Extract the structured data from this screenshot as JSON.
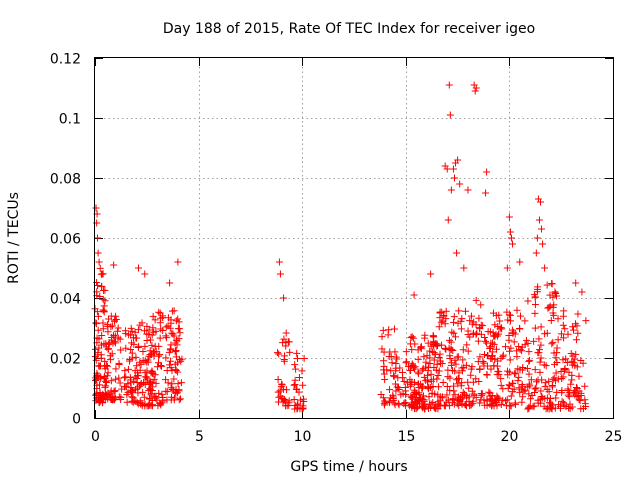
{
  "chart_data": {
    "type": "scatter",
    "title": "Day 188 of 2015, Rate Of TEC Index for receiver igeo",
    "xlabel": "GPS time / hours",
    "ylabel": "ROTI / TECUs",
    "xlim": [
      0,
      25
    ],
    "ylim": [
      0,
      0.12
    ],
    "x_ticks": [
      0,
      5,
      10,
      15,
      20,
      25
    ],
    "x_tick_labels": [
      "0",
      "5",
      "10",
      "15",
      "20",
      "25"
    ],
    "y_ticks": [
      0,
      0.02,
      0.04,
      0.06,
      0.08,
      0.1,
      0.12
    ],
    "y_tick_labels": [
      "0",
      "0.02",
      "0.04",
      "0.06",
      "0.08",
      "0.1",
      "0.12"
    ],
    "grid": true,
    "marker": "+",
    "color": "#ff0000",
    "series": [
      {
        "name": "ROTI",
        "clusters": [
          {
            "x": [
              0.0,
              0.5
            ],
            "y": [
              0.005,
              0.05
            ],
            "n": 90
          },
          {
            "x": [
              0.5,
              1.3
            ],
            "y": [
              0.006,
              0.034
            ],
            "n": 70
          },
          {
            "x": [
              1.4,
              2.1
            ],
            "y": [
              0.005,
              0.03
            ],
            "n": 60
          },
          {
            "x": [
              2.1,
              2.8
            ],
            "y": [
              0.004,
              0.032
            ],
            "n": 60
          },
          {
            "x": [
              2.6,
              3.3
            ],
            "y": [
              0.004,
              0.036
            ],
            "n": 60
          },
          {
            "x": [
              3.4,
              4.2
            ],
            "y": [
              0.006,
              0.04
            ],
            "n": 70
          },
          {
            "x": [
              8.8,
              9.4
            ],
            "y": [
              0.004,
              0.03
            ],
            "n": 35
          },
          {
            "x": [
              9.6,
              10.1
            ],
            "y": [
              0.003,
              0.025
            ],
            "n": 30
          },
          {
            "x": [
              13.8,
              15.2
            ],
            "y": [
              0.004,
              0.03
            ],
            "n": 70
          },
          {
            "x": [
              15.2,
              16.6
            ],
            "y": [
              0.003,
              0.028
            ],
            "n": 150
          },
          {
            "x": [
              16.6,
              18.0
            ],
            "y": [
              0.004,
              0.036
            ],
            "n": 110
          },
          {
            "x": [
              18.0,
              19.4
            ],
            "y": [
              0.004,
              0.04
            ],
            "n": 110
          },
          {
            "x": [
              19.4,
              20.8
            ],
            "y": [
              0.004,
              0.036
            ],
            "n": 90
          },
          {
            "x": [
              20.8,
              22.3
            ],
            "y": [
              0.003,
              0.045
            ],
            "n": 110
          },
          {
            "x": [
              22.3,
              23.7
            ],
            "y": [
              0.003,
              0.036
            ],
            "n": 80
          }
        ],
        "outliers": [
          [
            0.05,
            0.07
          ],
          [
            0.1,
            0.068
          ],
          [
            0.08,
            0.065
          ],
          [
            0.12,
            0.06
          ],
          [
            0.2,
            0.052
          ],
          [
            0.15,
            0.055
          ],
          [
            0.9,
            0.051
          ],
          [
            2.1,
            0.05
          ],
          [
            2.4,
            0.048
          ],
          [
            3.6,
            0.045
          ],
          [
            4.0,
            0.052
          ],
          [
            8.9,
            0.052
          ],
          [
            8.95,
            0.048
          ],
          [
            9.1,
            0.04
          ],
          [
            17.1,
            0.111
          ],
          [
            17.15,
            0.101
          ],
          [
            17.0,
            0.083
          ],
          [
            16.9,
            0.084
          ],
          [
            17.5,
            0.086
          ],
          [
            17.4,
            0.085
          ],
          [
            17.3,
            0.083
          ],
          [
            17.35,
            0.08
          ],
          [
            17.05,
            0.066
          ],
          [
            17.45,
            0.055
          ],
          [
            17.2,
            0.076
          ],
          [
            17.6,
            0.078
          ],
          [
            18.3,
            0.111
          ],
          [
            18.35,
            0.109
          ],
          [
            18.4,
            0.11
          ],
          [
            18.0,
            0.076
          ],
          [
            18.9,
            0.082
          ],
          [
            18.85,
            0.075
          ],
          [
            20.0,
            0.067
          ],
          [
            20.05,
            0.062
          ],
          [
            20.1,
            0.06
          ],
          [
            20.15,
            0.058
          ],
          [
            21.4,
            0.073
          ],
          [
            21.5,
            0.072
          ],
          [
            21.45,
            0.066
          ],
          [
            21.55,
            0.063
          ],
          [
            21.35,
            0.06
          ],
          [
            21.6,
            0.058
          ],
          [
            21.3,
            0.055
          ],
          [
            21.7,
            0.05
          ],
          [
            20.5,
            0.052
          ],
          [
            19.9,
            0.05
          ],
          [
            16.2,
            0.048
          ],
          [
            17.8,
            0.05
          ],
          [
            15.4,
            0.041
          ],
          [
            23.2,
            0.045
          ],
          [
            23.5,
            0.042
          ]
        ]
      }
    ]
  }
}
